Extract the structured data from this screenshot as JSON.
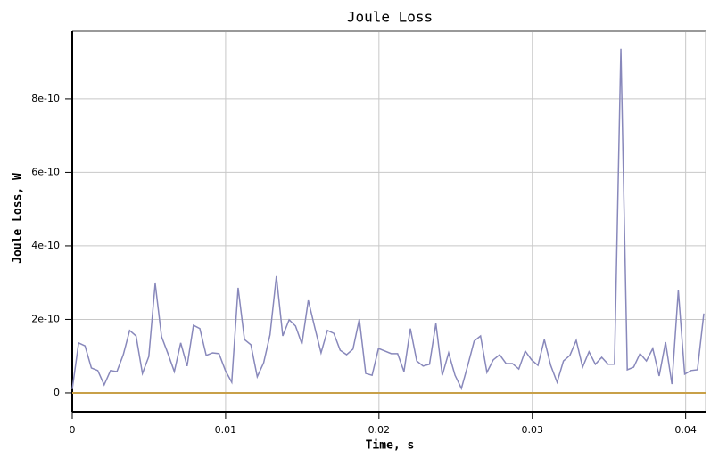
{
  "chart_data": {
    "type": "line",
    "title": "Joule Loss",
    "x_label": "Time, s",
    "y_label": "Joule Loss, W",
    "xlim": [
      0,
      0.0413
    ],
    "ylim": [
      -5.1e-11,
      9.84e-10
    ],
    "xticks": [
      0,
      0.01,
      0.02,
      0.03,
      0.04
    ],
    "yticks": [
      {
        "value": 0,
        "label": "0"
      },
      {
        "value": 2e-10,
        "label": "2e-10"
      },
      {
        "value": 4e-10,
        "label": "4e-10"
      },
      {
        "value": 6e-10,
        "label": "6e-10"
      },
      {
        "value": 8e-10,
        "label": "8e-10"
      }
    ],
    "grid": true,
    "zero_line_color": "#c8a048",
    "x": [
      0,
      0.000416,
      0.000832,
      0.001248,
      0.001664,
      0.00208,
      0.002496,
      0.002912,
      0.003328,
      0.003744,
      0.00416,
      0.004576,
      0.004992,
      0.005408,
      0.005824,
      0.00624,
      0.006656,
      0.007072,
      0.007488,
      0.007904,
      0.00832,
      0.008736,
      0.009152,
      0.009568,
      0.009984,
      0.0104,
      0.010816,
      0.011232,
      0.011648,
      0.012064,
      0.01248,
      0.012896,
      0.013312,
      0.013728,
      0.014144,
      0.01456,
      0.014976,
      0.015392,
      0.015808,
      0.016224,
      0.01664,
      0.017056,
      0.017472,
      0.017888,
      0.018304,
      0.01872,
      0.019136,
      0.019552,
      0.019968,
      0.020384,
      0.0208,
      0.021216,
      0.021632,
      0.022048,
      0.022464,
      0.02288,
      0.023296,
      0.023712,
      0.024128,
      0.024544,
      0.02496,
      0.025376,
      0.025792,
      0.026208,
      0.026624,
      0.02704,
      0.027456,
      0.027872,
      0.028288,
      0.028704,
      0.02912,
      0.029536,
      0.029952,
      0.030368,
      0.030784,
      0.0312,
      0.031616,
      0.032032,
      0.032448,
      0.032864,
      0.03328,
      0.033696,
      0.034112,
      0.034528,
      0.034944,
      0.03536,
      0.035776,
      0.036192,
      0.036608,
      0.037024,
      0.03744,
      0.037856,
      0.038272,
      0.038688,
      0.039104,
      0.03952,
      0.039936,
      0.040352,
      0.040768,
      0.041184
    ],
    "series": [
      {
        "name": "Joule Loss",
        "color": "#8888bb",
        "values": [
          1e-11,
          1.36e-10,
          1.28e-10,
          6.8e-11,
          6.1e-11,
          2.2e-11,
          6.1e-11,
          5.8e-11,
          1.04e-10,
          1.7e-10,
          1.55e-10,
          5.3e-11,
          9.9e-11,
          2.98e-10,
          1.53e-10,
          1.07e-10,
          5.8e-11,
          1.36e-10,
          7.3e-11,
          1.84e-10,
          1.75e-10,
          1.02e-10,
          1.09e-10,
          1.07e-10,
          6.1e-11,
          2.9e-11,
          2.86e-10,
          1.45e-10,
          1.31e-10,
          4.4e-11,
          8.2e-11,
          1.58e-10,
          3.18e-10,
          1.55e-10,
          1.99e-10,
          1.82e-10,
          1.33e-10,
          2.52e-10,
          1.79e-10,
          1.09e-10,
          1.7e-10,
          1.62e-10,
          1.16e-10,
          1.04e-10,
          1.19e-10,
          2.01e-10,
          5.3e-11,
          4.8e-11,
          1.21e-10,
          1.14e-10,
          1.07e-10,
          1.07e-10,
          5.8e-11,
          1.75e-10,
          8.7e-11,
          7.3e-11,
          7.8e-11,
          1.89e-10,
          4.8e-11,
          1.09e-10,
          4.8e-11,
          1.2e-11,
          7.5e-11,
          1.41e-10,
          1.55e-10,
          5.6e-11,
          9e-11,
          1.04e-10,
          8e-11,
          8e-11,
          6.5e-11,
          1.14e-10,
          9e-11,
          7.5e-11,
          1.45e-10,
          7.5e-11,
          2.9e-11,
          8.7e-11,
          1.02e-10,
          1.43e-10,
          7e-11,
          1.12e-10,
          7.8e-11,
          9.7e-11,
          7.8e-11,
          7.8e-11,
          9.36e-10,
          6.3e-11,
          7e-11,
          1.07e-10,
          8.7e-11,
          1.21e-10,
          4.6e-11,
          1.38e-10,
          2.4e-11,
          2.79e-10,
          5.1e-11,
          6.1e-11,
          6.3e-11,
          2.16e-10
        ]
      }
    ]
  }
}
